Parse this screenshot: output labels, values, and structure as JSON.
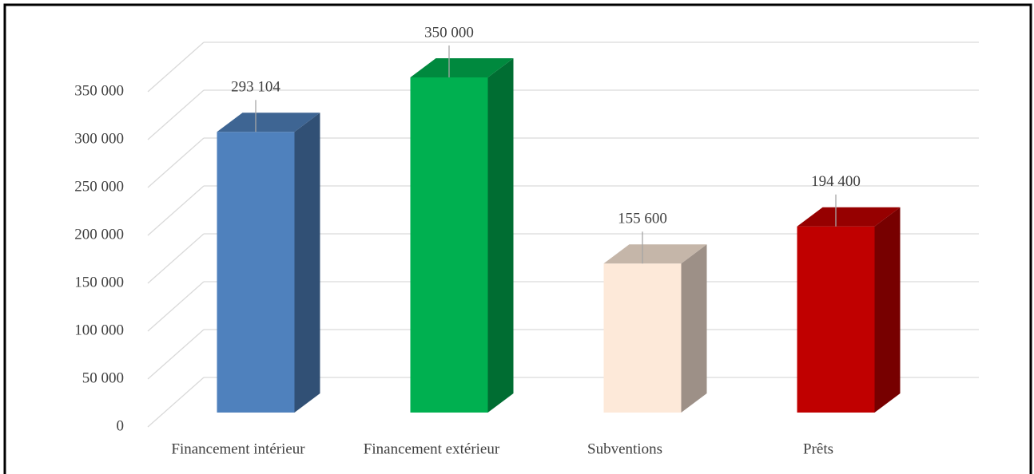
{
  "chart_data": {
    "type": "bar3d",
    "categories": [
      "Financement intérieur",
      "Financement extérieur",
      "Subventions",
      "Prêts"
    ],
    "values": [
      293104,
      350000,
      155600,
      194400
    ],
    "value_labels": [
      "293 104",
      "350 000",
      "155 600",
      "194 400"
    ],
    "colors": [
      "#4f81bd",
      "#00b050",
      "#fde9d9",
      "#c00000"
    ],
    "ylim": [
      0,
      350000
    ],
    "yticks": [
      {
        "value": 0,
        "label": "0"
      },
      {
        "value": 50000,
        "label": "50 000"
      },
      {
        "value": 100000,
        "label": "100 000"
      },
      {
        "value": 150000,
        "label": "150 000"
      },
      {
        "value": 200000,
        "label": "200 000"
      },
      {
        "value": 250000,
        "label": "250 000"
      },
      {
        "value": 300000,
        "label": "300 000"
      },
      {
        "value": 350000,
        "label": "350 000"
      }
    ],
    "grid": true
  }
}
